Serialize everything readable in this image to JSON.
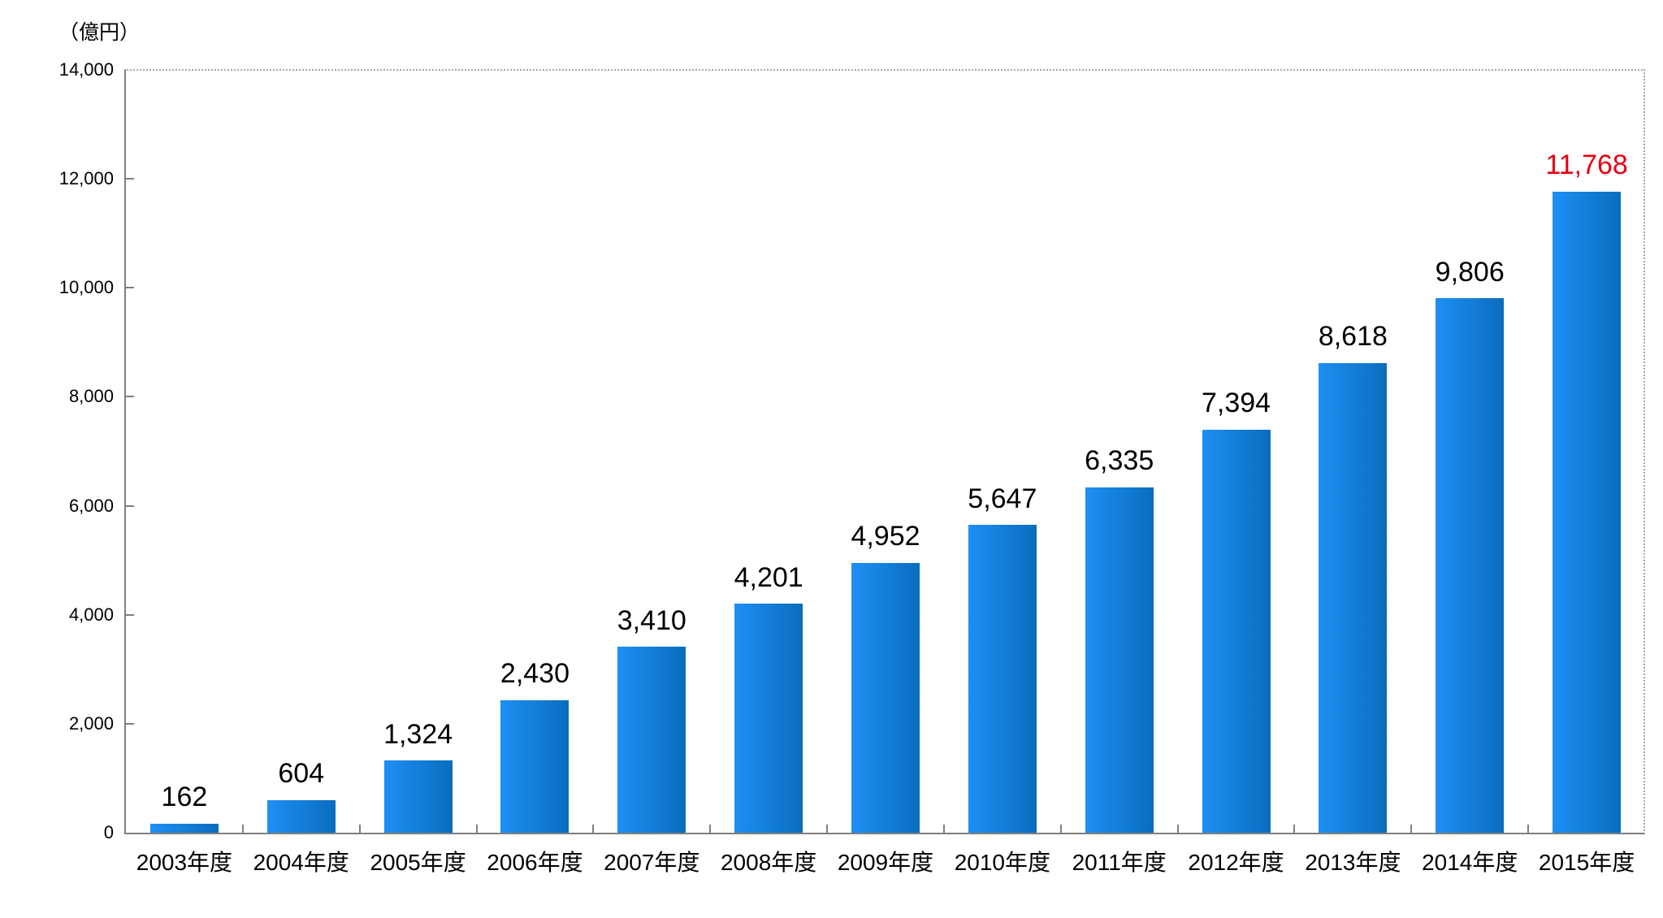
{
  "unit_label": "（億円）",
  "chart_data": {
    "type": "bar",
    "title": "",
    "xlabel": "",
    "ylabel": "（億円）",
    "categories": [
      "2003年度",
      "2004年度",
      "2005年度",
      "2006年度",
      "2007年度",
      "2008年度",
      "2009年度",
      "2010年度",
      "2011年度",
      "2012年度",
      "2013年度",
      "2014年度",
      "2015年度"
    ],
    "values": [
      162,
      604,
      1324,
      2430,
      3410,
      4201,
      4952,
      5647,
      6335,
      7394,
      8618,
      9806,
      11768
    ],
    "value_labels": [
      "162",
      "604",
      "1,324",
      "2,430",
      "3,410",
      "4,201",
      "4,952",
      "5,647",
      "6,335",
      "7,394",
      "8,618",
      "9,806",
      "11,768"
    ],
    "ylim": [
      0,
      14000
    ],
    "ytick_step": 2000,
    "ytick_labels": [
      "0",
      "2,000",
      "4,000",
      "6,000",
      "8,000",
      "10,000",
      "12,000",
      "14,000"
    ],
    "grid": "no interior gridlines; dotted border on top and right of plot area",
    "legend_position": "none",
    "highlight": {
      "index": 12,
      "color": "#e60012"
    },
    "colors": {
      "bar_gradient_left": "#1e8ff4",
      "bar_gradient_right": "#0a6dbd",
      "axis": "#7f7f7f",
      "dotted_border": "#a6a6a6",
      "label_text": "#000000"
    }
  }
}
